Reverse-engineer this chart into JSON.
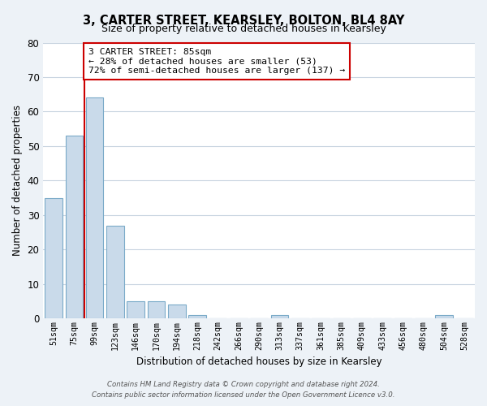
{
  "title": "3, CARTER STREET, KEARSLEY, BOLTON, BL4 8AY",
  "subtitle": "Size of property relative to detached houses in Kearsley",
  "xlabel": "Distribution of detached houses by size in Kearsley",
  "ylabel": "Number of detached properties",
  "bar_labels": [
    "51sqm",
    "75sqm",
    "99sqm",
    "123sqm",
    "146sqm",
    "170sqm",
    "194sqm",
    "218sqm",
    "242sqm",
    "266sqm",
    "290sqm",
    "313sqm",
    "337sqm",
    "361sqm",
    "385sqm",
    "409sqm",
    "433sqm",
    "456sqm",
    "480sqm",
    "504sqm",
    "528sqm"
  ],
  "bar_values": [
    35,
    53,
    64,
    27,
    5,
    5,
    4,
    1,
    0,
    0,
    0,
    1,
    0,
    0,
    0,
    0,
    0,
    0,
    0,
    1,
    0
  ],
  "bar_color": "#c9daea",
  "bar_edge_color": "#7aaac8",
  "ylim": [
    0,
    80
  ],
  "yticks": [
    0,
    10,
    20,
    30,
    40,
    50,
    60,
    70,
    80
  ],
  "property_line_x": 1.5,
  "property_line_color": "#cc0000",
  "annotation_text": "3 CARTER STREET: 85sqm\n← 28% of detached houses are smaller (53)\n72% of semi-detached houses are larger (137) →",
  "annotation_box_color": "#ffffff",
  "annotation_box_edge": "#cc0000",
  "footer_line1": "Contains HM Land Registry data © Crown copyright and database right 2024.",
  "footer_line2": "Contains public sector information licensed under the Open Government Licence v3.0.",
  "background_color": "#edf2f7",
  "plot_background_color": "#ffffff",
  "grid_color": "#c8d4e0"
}
